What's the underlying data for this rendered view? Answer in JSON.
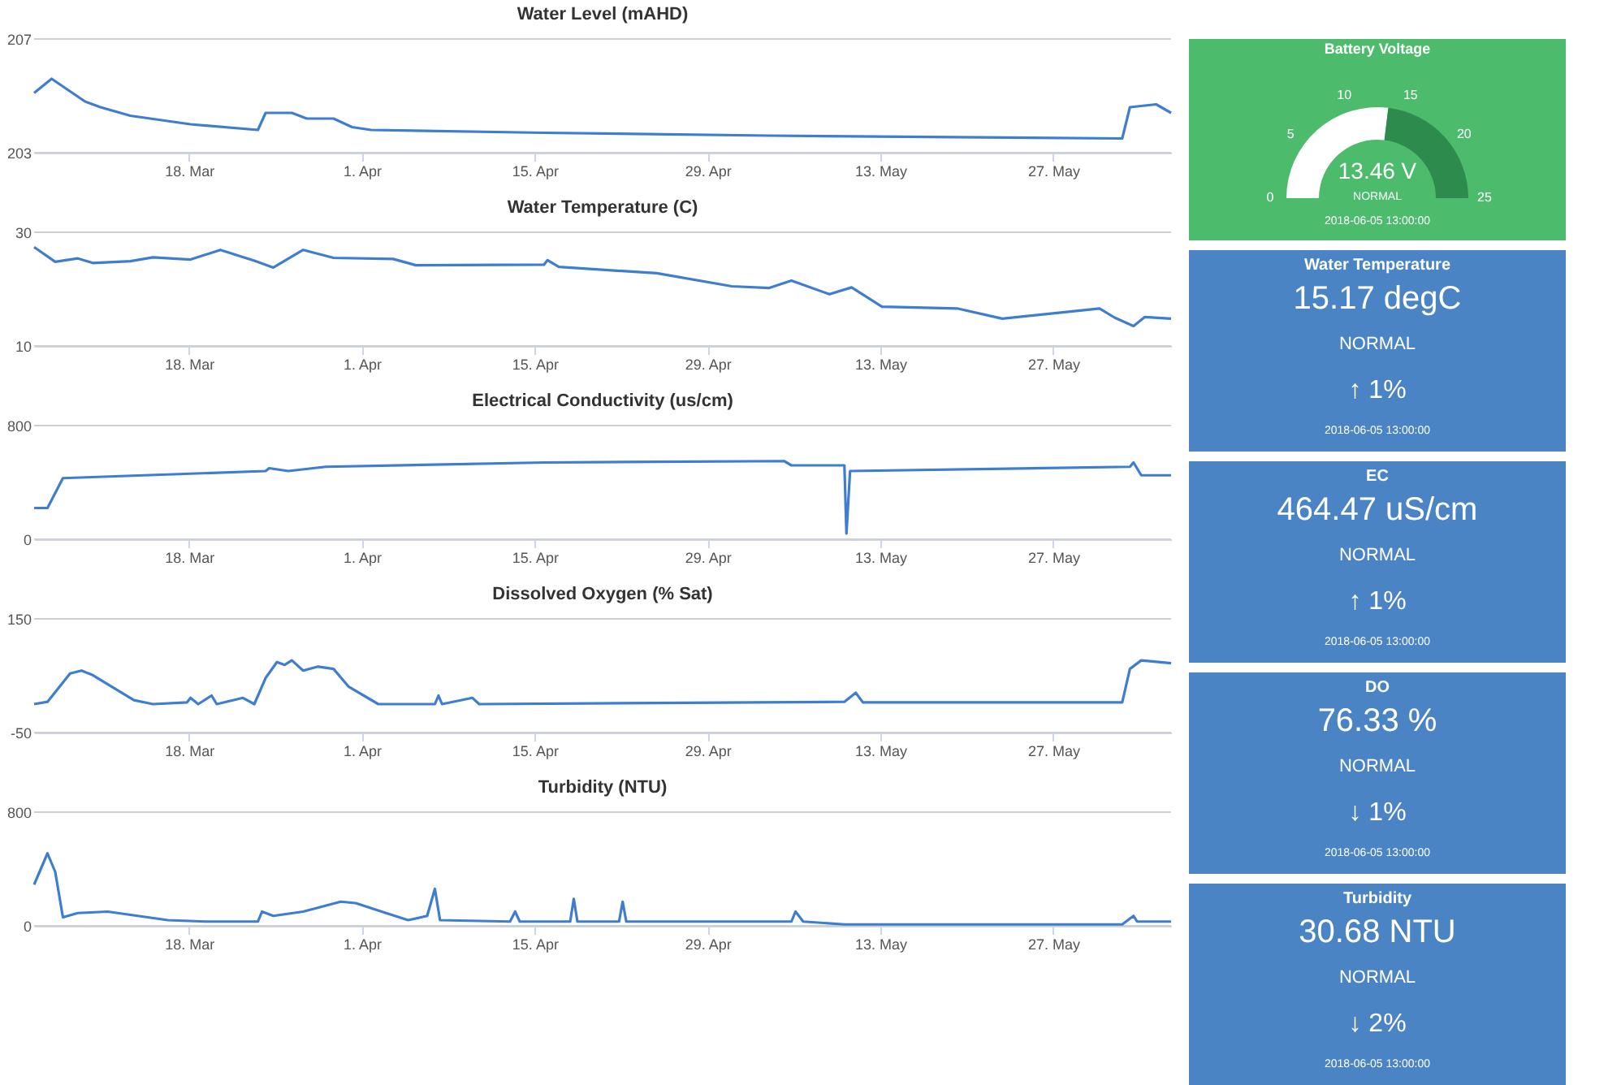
{
  "chart_data": [
    {
      "type": "line",
      "title": "Water Level (mAHD)",
      "grid": "y",
      "xlim": [
        "2018-03-05T11:00",
        "2018-06-05T13:00"
      ],
      "ylim": [
        203,
        207
      ],
      "yticks": [
        203,
        207
      ],
      "xticks": [
        {
          "value": "2018-03-18",
          "label": "18. Mar"
        },
        {
          "value": "2018-04-01",
          "label": "1. Apr"
        },
        {
          "value": "2018-04-15",
          "label": "15. Apr"
        },
        {
          "value": "2018-04-29",
          "label": "29. Apr"
        },
        {
          "value": "2018-05-13",
          "label": "13. May"
        },
        {
          "value": "2018-05-27",
          "label": "27. May"
        }
      ],
      "x": [
        "2018-03-05T11:00",
        "2018-03-06T21:00",
        "2018-03-09T14:00",
        "2018-03-10T20:00",
        "2018-03-13T06:00",
        "2018-03-18T03:00",
        "2018-03-23T14:00",
        "2018-03-24T05:00",
        "2018-03-26T08:00",
        "2018-03-27T13:00",
        "2018-03-29T17:00",
        "2018-03-31T05:00",
        "2018-04-01T18:00",
        "2018-04-15T18:00",
        "2018-05-04T00:00",
        "2018-06-01T14:00",
        "2018-06-02T05:00",
        "2018-06-04T08:00",
        "2018-06-05T13:00"
      ],
      "series": [
        {
          "color": "#3f7dd0",
          "values": [
            205.1,
            205.6,
            204.8,
            204.6,
            204.3,
            204.0,
            203.8,
            204.4,
            204.4,
            204.2,
            204.2,
            203.9,
            203.8,
            203.7,
            203.6,
            203.5,
            204.6,
            204.7,
            204.4
          ]
        }
      ]
    },
    {
      "type": "donut",
      "title": "Battery Voltage",
      "categories": [
        null,
        null
      ],
      "values": [
        53.84,
        46.16
      ],
      "colors": [
        "#ffffff",
        "#2e8b4e"
      ],
      "color": "#4cbb6c",
      "annotations": [
        "13.46 V",
        "NORMAL",
        "2018-06-05 13:00:00",
        "0",
        "5",
        "10",
        "15",
        "20",
        "25"
      ]
    },
    {
      "type": "line",
      "title": "Water Temperature (C)",
      "grid": "y",
      "xlim": [
        "2018-03-05T11:00",
        "2018-06-05T13:00"
      ],
      "ylim": [
        10,
        30
      ],
      "yticks": [
        10,
        30
      ],
      "xticks": [
        {
          "value": "2018-03-18",
          "label": "18. Mar"
        },
        {
          "value": "2018-04-01",
          "label": "1. Apr"
        },
        {
          "value": "2018-04-15",
          "label": "15. Apr"
        },
        {
          "value": "2018-04-29",
          "label": "29. Apr"
        },
        {
          "value": "2018-05-13",
          "label": "13. May"
        },
        {
          "value": "2018-05-27",
          "label": "27. May"
        }
      ],
      "x": [
        "2018-03-05T11:00",
        "2018-03-07T04:00",
        "2018-03-09T00:00",
        "2018-03-10T05:00",
        "2018-03-13T06:00",
        "2018-03-15T02:00",
        "2018-03-18T03:00",
        "2018-03-20T13:00",
        "2018-03-23T07:00",
        "2018-03-24T20:00",
        "2018-03-27T06:00",
        "2018-03-29T17:00",
        "2018-04-03T13:00",
        "2018-04-05T09:00",
        "2018-04-15T18:00",
        "2018-04-16T01:00",
        "2018-04-16T23:00",
        "2018-04-24T21:00",
        "2018-04-30T23:00",
        "2018-05-04T00:00",
        "2018-05-05T19:00",
        "2018-05-08T21:00",
        "2018-05-10T16:00",
        "2018-05-13T03:00",
        "2018-05-19T05:00",
        "2018-05-22T21:00",
        "2018-05-30T18:00",
        "2018-05-31T23:00",
        "2018-06-02T12:00",
        "2018-06-03T10:00",
        "2018-06-05T13:00"
      ],
      "series": [
        {
          "color": "#3f7dd0",
          "values": [
            27.4,
            24.8,
            25.4,
            24.6,
            24.9,
            25.6,
            25.2,
            26.9,
            25.0,
            23.8,
            26.9,
            25.5,
            25.3,
            24.2,
            24.3,
            25.1,
            23.9,
            22.8,
            20.5,
            20.2,
            21.5,
            19.1,
            20.3,
            16.9,
            16.6,
            14.8,
            16.6,
            15.0,
            13.5,
            15.1,
            14.8
          ]
        }
      ]
    },
    {
      "type": "other",
      "title": "Water Temperature",
      "color": "#4a84c4",
      "annotations": [
        "15.17 degC",
        "NORMAL",
        "↑ 1%",
        "2018-06-05 13:00:00"
      ]
    },
    {
      "type": "line",
      "title": "Electrical Conductivity (us/cm)",
      "grid": "y",
      "xlim": [
        "2018-03-05T11:00",
        "2018-06-05T13:00"
      ],
      "ylim": [
        0,
        800
      ],
      "yticks": [
        0,
        800
      ],
      "xticks": [
        {
          "value": "2018-03-18",
          "label": "18. Mar"
        },
        {
          "value": "2018-04-01",
          "label": "1. Apr"
        },
        {
          "value": "2018-04-15",
          "label": "15. Apr"
        },
        {
          "value": "2018-04-29",
          "label": "29. Apr"
        },
        {
          "value": "2018-05-13",
          "label": "13. May"
        },
        {
          "value": "2018-05-27",
          "label": "27. May"
        }
      ],
      "x": [
        "2018-03-05T11:00",
        "2018-03-06T13:00",
        "2018-03-07T19:00",
        "2018-03-24T05:00",
        "2018-03-24T12:00",
        "2018-03-26T01:00",
        "2018-03-29T02:00",
        "2018-04-15T18:00",
        "2018-05-05T05:00",
        "2018-05-05T19:00",
        "2018-05-10T02:00",
        "2018-05-10T06:00",
        "2018-05-10T13:00",
        "2018-06-02T05:00",
        "2018-06-02T12:00",
        "2018-06-03T03:00",
        "2018-06-05T13:00"
      ],
      "series": [
        {
          "color": "#3f7dd0",
          "values": [
            220,
            220,
            430,
            480,
            500,
            480,
            510,
            540,
            550,
            520,
            520,
            40,
            480,
            510,
            540,
            450,
            450
          ]
        }
      ]
    },
    {
      "type": "other",
      "title": "EC",
      "color": "#4a84c4",
      "annotations": [
        "464.47 uS/cm",
        "NORMAL",
        "↑ 1%",
        "2018-06-05 13:00:00"
      ]
    },
    {
      "type": "line",
      "title": "Dissolved Oxygen (% Sat)",
      "grid": "y",
      "xlim": [
        "2018-03-05T11:00",
        "2018-06-05T13:00"
      ],
      "ylim": [
        -50,
        150
      ],
      "yticks": [
        -50,
        150
      ],
      "xticks": [
        {
          "value": "2018-03-18",
          "label": "18. Mar"
        },
        {
          "value": "2018-04-01",
          "label": "1. Apr"
        },
        {
          "value": "2018-04-15",
          "label": "15. Apr"
        },
        {
          "value": "2018-04-29",
          "label": "29. Apr"
        },
        {
          "value": "2018-05-13",
          "label": "13. May"
        },
        {
          "value": "2018-05-27",
          "label": "27. May"
        }
      ],
      "x": [
        "2018-03-05T11:00",
        "2018-03-06T13:00",
        "2018-03-08T09:00",
        "2018-03-09T07:00",
        "2018-03-10T05:00",
        "2018-03-13T13:00",
        "2018-03-15T02:00",
        "2018-03-17T20:00",
        "2018-03-18T03:00",
        "2018-03-18T18:00",
        "2018-03-19T20:00",
        "2018-03-20T06:00",
        "2018-03-22T09:00",
        "2018-03-23T07:00",
        "2018-03-24T05:00",
        "2018-03-25T03:00",
        "2018-03-25T18:00",
        "2018-03-26T08:00",
        "2018-03-27T06:00",
        "2018-03-28T11:00",
        "2018-03-29T17:00",
        "2018-03-30T22:00",
        "2018-04-02T08:00",
        "2018-04-06T22:00",
        "2018-04-07T05:00",
        "2018-04-07T12:00",
        "2018-04-09T23:00",
        "2018-04-10T12:00",
        "2018-05-10T02:00",
        "2018-05-11T00:00",
        "2018-05-11T14:00",
        "2018-06-01T14:00",
        "2018-06-02T05:00",
        "2018-06-03T03:00",
        "2018-06-05T13:00"
      ],
      "series": [
        {
          "color": "#3f7dd0",
          "values": [
            0,
            4,
            54,
            59,
            51,
            7,
            0,
            3,
            11,
            0,
            15,
            0,
            11,
            0,
            46,
            74,
            69,
            77,
            59,
            66,
            62,
            31,
            0,
            0,
            15,
            0,
            11,
            0,
            4,
            20,
            3,
            3,
            62,
            77,
            72
          ]
        }
      ]
    },
    {
      "type": "other",
      "title": "DO",
      "color": "#4a84c4",
      "annotations": [
        "76.33 %",
        "NORMAL",
        "↓ 1%",
        "2018-06-05 13:00:00"
      ]
    },
    {
      "type": "line",
      "title": "Turbidity (NTU)",
      "grid": "y",
      "xlim": [
        "2018-03-05T11:00",
        "2018-06-05T13:00"
      ],
      "ylim": [
        0,
        800
      ],
      "yticks": [
        0,
        800
      ],
      "xticks": [
        {
          "value": "2018-03-18",
          "label": "18. Mar"
        },
        {
          "value": "2018-04-01",
          "label": "1. Apr"
        },
        {
          "value": "2018-04-15",
          "label": "15. Apr"
        },
        {
          "value": "2018-04-29",
          "label": "29. Apr"
        },
        {
          "value": "2018-05-13",
          "label": "13. May"
        },
        {
          "value": "2018-05-27",
          "label": "27. May"
        }
      ],
      "x": [
        "2018-03-05T11:00",
        "2018-03-06T13:00",
        "2018-03-07T04:00",
        "2018-03-07T19:00",
        "2018-03-09T00:00",
        "2018-03-11T10:00",
        "2018-03-16T07:00",
        "2018-03-19T08:00",
        "2018-03-23T14:00",
        "2018-03-23T22:00",
        "2018-03-24T20:00",
        "2018-03-27T06:00",
        "2018-03-30T07:00",
        "2018-03-31T12:00",
        "2018-04-02T23:00",
        "2018-04-04T18:00",
        "2018-04-06T07:00",
        "2018-04-06T22:00",
        "2018-04-07T08:00",
        "2018-04-13T00:00",
        "2018-04-13T10:00",
        "2018-04-13T19:00",
        "2018-04-17T21:00",
        "2018-04-18T04:00",
        "2018-04-18T11:00",
        "2018-04-21T20:00",
        "2018-04-22T03:00",
        "2018-04-22T10:00",
        "2018-05-05T19:00",
        "2018-05-06T03:00",
        "2018-05-06T18:00",
        "2018-05-10T02:00",
        "2018-06-01T14:00",
        "2018-06-02T12:00",
        "2018-06-02T19:00",
        "2018-06-05T13:00"
      ],
      "series": [
        {
          "color": "#3f7dd0",
          "values": [
            290,
            510,
            380,
            60,
            90,
            100,
            40,
            30,
            30,
            100,
            70,
            100,
            170,
            160,
            90,
            40,
            70,
            260,
            40,
            30,
            100,
            30,
            30,
            190,
            30,
            30,
            170,
            30,
            30,
            100,
            30,
            10,
            10,
            70,
            30,
            30
          ]
        }
      ]
    },
    {
      "type": "other",
      "title": "Turbidity",
      "color": "#4a84c4",
      "annotations": [
        "30.68 NTU",
        "NORMAL",
        "↓ 2%",
        "2018-06-05 13:00:00"
      ]
    }
  ]
}
